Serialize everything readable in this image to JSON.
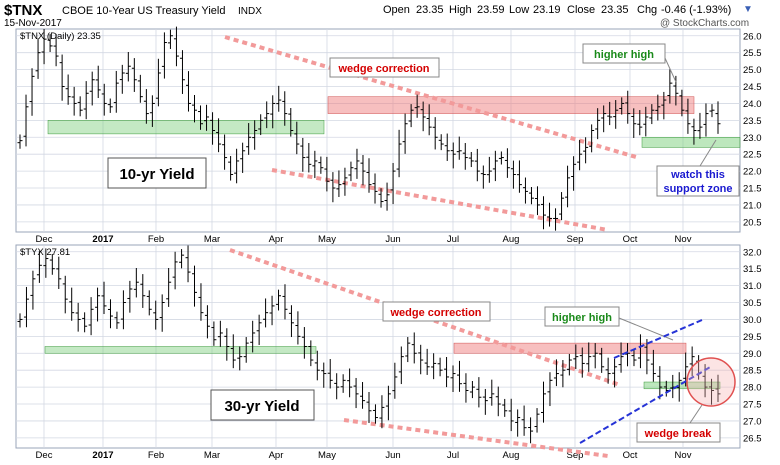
{
  "header": {
    "symbol": "$TNX",
    "name": "CBOE 10-Year US Treasury Yield",
    "exchange": "INDX",
    "date": "15-Nov-2017",
    "open_label": "Open",
    "open": "23.35",
    "high_label": "High",
    "high": "23.59",
    "low_label": "Low",
    "low": "23.19",
    "close_label": "Close",
    "close": "23.35",
    "chg_label": "Chg",
    "chg": "-0.46 (-1.93%)",
    "watermark": "@ StockCharts.com"
  },
  "chart_data": [
    {
      "type": "ohlc",
      "panel_label": "$TNX (Daily) 23.35",
      "big_label": "10-yr Yield",
      "x_ticks": [
        "Dec",
        "2017",
        "Feb",
        "Mar",
        "Apr",
        "May",
        "Jun",
        "Jul",
        "Aug",
        "Sep",
        "Oct",
        "Nov"
      ],
      "y_ticks": [
        "26.0",
        "25.5",
        "25.0",
        "24.5",
        "24.0",
        "23.5",
        "23.0",
        "22.5",
        "22.0",
        "21.5",
        "21.0",
        "20.5"
      ],
      "ylim": [
        20.2,
        26.2
      ],
      "closes": [
        22.9,
        23.9,
        24.8,
        25.5,
        25.9,
        25.7,
        25.4,
        24.5,
        24.2,
        24.0,
        23.8,
        24.3,
        24.7,
        24.4,
        24.0,
        23.9,
        24.6,
        24.9,
        25.1,
        24.7,
        24.2,
        23.7,
        24.0,
        24.9,
        25.8,
        26.0,
        25.4,
        24.7,
        24.0,
        23.8,
        23.4,
        23.6,
        23.2,
        22.8,
        22.4,
        21.9,
        22.3,
        22.6,
        23.0,
        23.2,
        23.5,
        23.7,
        24.0,
        24.1,
        23.7,
        23.2,
        22.8,
        22.4,
        22.2,
        22.3,
        22.1,
        21.7,
        21.5,
        21.6,
        21.8,
        22.1,
        22.3,
        22.0,
        21.6,
        21.4,
        21.1,
        21.3,
        22.0,
        22.8,
        23.4,
        23.8,
        23.9,
        23.6,
        23.3,
        23.0,
        22.8,
        22.6,
        22.5,
        22.6,
        22.4,
        22.3,
        22.0,
        21.9,
        22.0,
        22.3,
        22.4,
        22.1,
        21.9,
        21.6,
        21.4,
        21.2,
        21.0,
        20.7,
        20.6,
        20.6,
        21.2,
        21.8,
        22.2,
        22.5,
        22.7,
        23.2,
        23.5,
        23.7,
        23.6,
        23.8,
        24.0,
        23.7,
        23.4,
        23.3,
        23.6,
        23.8,
        23.9,
        24.1,
        24.6,
        24.3,
        23.8,
        23.4,
        23.2,
        23.3,
        23.7,
        23.8,
        23.4
      ],
      "resistance_zone": [
        23.7,
        24.2
      ],
      "support_zone_left": [
        23.1,
        23.5
      ],
      "support_zone_right": [
        22.7,
        23.0
      ],
      "annotations": {
        "wedge": "wedge correction",
        "higher_high": "higher high",
        "support": "watch this support zone"
      }
    },
    {
      "type": "ohlc",
      "panel_label": "$TYX 27.81",
      "big_label": "30-yr Yield",
      "x_ticks": [
        "Dec",
        "2017",
        "Feb",
        "Mar",
        "Apr",
        "May",
        "Jun",
        "Jul",
        "Aug",
        "Sep",
        "Oct",
        "Nov"
      ],
      "y_ticks": [
        "32.0",
        "31.5",
        "31.0",
        "30.5",
        "30.0",
        "29.5",
        "29.0",
        "28.5",
        "28.0",
        "27.5",
        "27.0",
        "26.5"
      ],
      "ylim": [
        26.2,
        32.2
      ],
      "closes": [
        30.0,
        30.6,
        31.2,
        31.6,
        31.8,
        31.5,
        31.2,
        30.6,
        30.2,
        30.0,
        29.8,
        30.3,
        30.7,
        30.4,
        30.1,
        29.9,
        30.5,
        30.9,
        31.1,
        30.7,
        30.3,
        30.0,
        30.5,
        31.1,
        31.7,
        31.9,
        31.4,
        30.8,
        30.2,
        29.8,
        29.4,
        29.6,
        29.2,
        28.8,
        28.9,
        29.3,
        29.6,
        29.9,
        30.2,
        30.4,
        30.7,
        30.3,
        29.9,
        29.5,
        29.2,
        28.8,
        28.5,
        28.4,
        28.2,
        28.0,
        28.2,
        28.0,
        27.8,
        27.6,
        27.3,
        27.1,
        27.4,
        27.8,
        28.3,
        28.9,
        29.3,
        29.0,
        28.8,
        28.6,
        28.7,
        28.5,
        28.3,
        28.4,
        28.1,
        27.9,
        28.0,
        27.7,
        27.6,
        27.8,
        27.5,
        27.3,
        27.0,
        27.1,
        26.8,
        26.7,
        27.2,
        27.8,
        28.2,
        28.4,
        28.5,
        28.8,
        28.9,
        28.7,
        28.9,
        29.0,
        28.6,
        28.4,
        28.6,
        28.9,
        29.0,
        28.8,
        29.2,
        28.8,
        28.4,
        28.0,
        27.9,
        28.0,
        28.2,
        28.6,
        28.9,
        28.4,
        28.0,
        27.9,
        27.8
      ],
      "resistance_zone": [
        29.0,
        29.3
      ],
      "support_zone_left": [
        29.0,
        29.2
      ],
      "support_zone_right": [
        27.95,
        28.15
      ],
      "annotations": {
        "wedge": "wedge correction",
        "higher_high": "higher high",
        "break": "wedge break"
      }
    }
  ]
}
